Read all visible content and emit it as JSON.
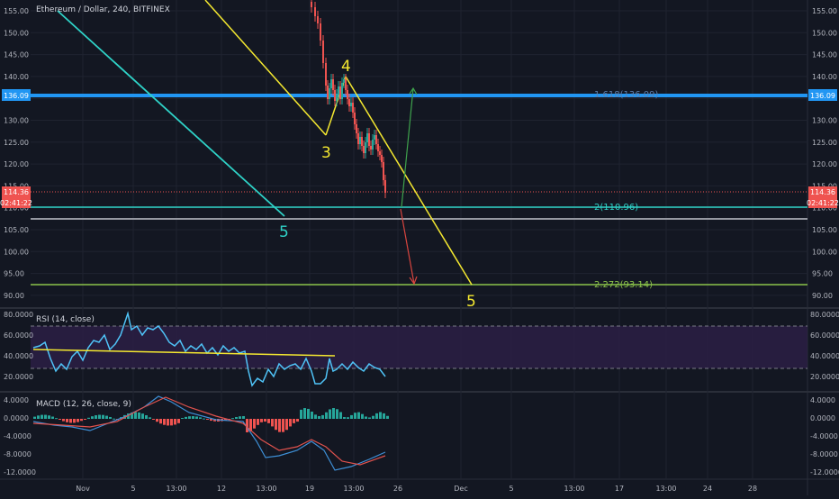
{
  "title": "Ethereum / Dollar, 240, BITFINEX",
  "colors": {
    "background": "#131722",
    "grid": "#2a2e39",
    "axis_text": "#b2b5be",
    "up": "#26a69a",
    "down": "#ef5350",
    "cyan": "#2fd3c8",
    "yellow": "#f4e830",
    "blue_line": "#2196f3",
    "gray_line": "#9598a1",
    "green_line": "#8bc34a",
    "rsi_line": "#4fc3f7",
    "rsi_band": "#2b1f44",
    "macd_line": "#3e8fd6",
    "signal_line": "#e0524d"
  },
  "price_axis": {
    "ticks": [
      "155.00",
      "150.00",
      "145.00",
      "140.00",
      "135.00",
      "130.00",
      "125.00",
      "120.00",
      "115.00",
      "110.00",
      "105.00",
      "100.00",
      "95.00",
      "90.00"
    ],
    "current_price": "114.36",
    "countdown": "02:41:22",
    "h_line_label": "136.09"
  },
  "rsi": {
    "label": "RSI (14, close)",
    "ticks": [
      "80.0000",
      "60.0000",
      "40.0000",
      "20.0000"
    ]
  },
  "macd": {
    "label": "MACD (12, 26, close, 9)",
    "ticks": [
      "4.0000",
      "0.0000",
      "-4.0000",
      "-8.0000",
      "-12.0000"
    ]
  },
  "time_axis": [
    "Nov",
    "5",
    "13:00",
    "12",
    "13:00",
    "19",
    "13:00",
    "26",
    "Dec",
    "5",
    "13:00",
    "17",
    "13:00",
    "24",
    "28"
  ],
  "annotations": {
    "wave_3": "3",
    "wave_4": "4",
    "wave_5_cyan": "5",
    "wave_5_yellow": "5",
    "fib_2": "2(110.96)",
    "fib_2272": "2.272(93.14)",
    "fib_top": "1.618(136.09)"
  },
  "chart_data": {
    "type": "candlestick",
    "title": "Ethereum / Dollar, 240, BITFINEX",
    "y_range": [
      88,
      158
    ],
    "last_price": 114.36,
    "horizontal_levels": [
      {
        "name": "blue level",
        "value": 136.09
      },
      {
        "name": "fib 2",
        "value": 110.96
      },
      {
        "name": "gray level",
        "value": 108.2
      },
      {
        "name": "fib 2.272",
        "value": 93.14
      }
    ],
    "wave_points": {
      "3": 127,
      "4": 140.5,
      "5_target": 93.14
    },
    "rsi_range": [
      10,
      90
    ],
    "rsi_levels": [
      70,
      30
    ],
    "macd_range": [
      -13,
      5
    ]
  }
}
